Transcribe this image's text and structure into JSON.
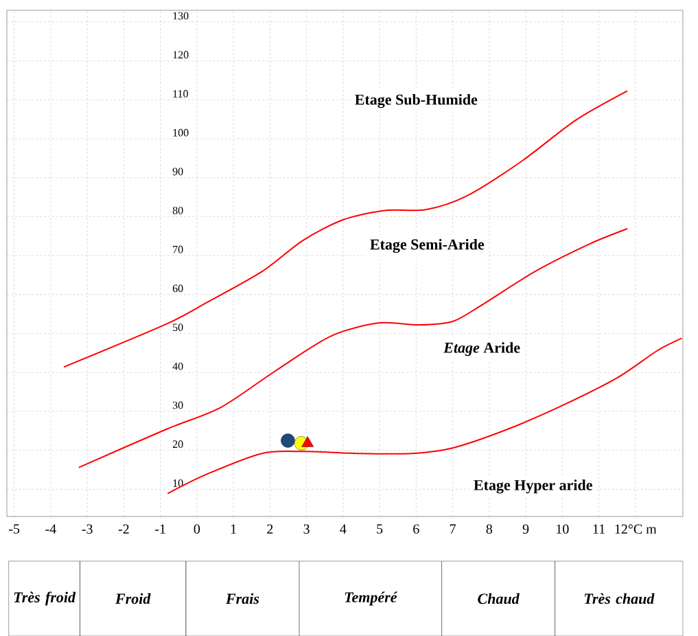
{
  "chart_data": {
    "type": "line",
    "xlim": [
      -5.2,
      13.3
    ],
    "ylim": [
      3,
      133
    ],
    "xticks": [
      -5,
      -4,
      -3,
      -2,
      -1,
      0,
      1,
      2,
      3,
      4,
      5,
      6,
      7,
      8,
      9,
      10,
      11,
      {
        "value": 12,
        "label": "12°C m"
      }
    ],
    "yticks": [
      10,
      20,
      30,
      40,
      50,
      60,
      70,
      80,
      90,
      100,
      110,
      120,
      130
    ],
    "grid": true,
    "series": [
      {
        "color": "#ff0000",
        "marker": "none",
        "x": [
          -3.64,
          -0.84,
          0.28,
          1.78,
          2.9,
          4.0,
          5.14,
          6.26,
          7.38,
          8.88,
          10.37,
          11.78
        ],
        "values": [
          41.4,
          52.4,
          58.0,
          65.9,
          73.9,
          79.2,
          81.6,
          81.8,
          85.3,
          94.2,
          104.8,
          112.3
        ]
      },
      {
        "color": "#ff0000",
        "marker": "none",
        "x": [
          -3.23,
          -0.84,
          0.65,
          2.15,
          3.64,
          4.95,
          6.07,
          7.0,
          7.76,
          9.25,
          10.75,
          11.78
        ],
        "values": [
          15.6,
          25.4,
          31.0,
          40.4,
          49.2,
          52.7,
          52.2,
          53.1,
          57.1,
          65.9,
          73.0,
          76.9
        ]
      },
      {
        "color": "#ff0000",
        "marker": "none",
        "x": [
          -0.8,
          0.28,
          1.78,
          2.9,
          4.39,
          5.89,
          7.0,
          8.5,
          10.0,
          11.5,
          12.6,
          13.27
        ],
        "values": [
          8.9,
          13.9,
          19.2,
          19.7,
          19.2,
          19.2,
          20.6,
          25.4,
          31.5,
          38.6,
          45.6,
          48.8
        ]
      },
      {
        "type": "scatter",
        "color": "#1f497d",
        "marker": "circle",
        "x": [
          2.49
        ],
        "values": [
          22.5
        ]
      },
      {
        "type": "scatter",
        "color": "#ffff00",
        "marker": "circle",
        "x": [
          2.86
        ],
        "values": [
          21.8
        ]
      },
      {
        "type": "scatter",
        "color": "#ff0000",
        "marker": "triangle",
        "x": [
          3.03
        ],
        "values": [
          21.8
        ]
      }
    ],
    "annotations": [
      "Etage Sub-Humide",
      "Etage Semi-Aride",
      "*Etage* Aride",
      "Etage Hyper aride",
      "Très froid",
      "Froid",
      "Frais",
      "Tempéré",
      "Chaud",
      "Très chaud"
    ]
  }
}
